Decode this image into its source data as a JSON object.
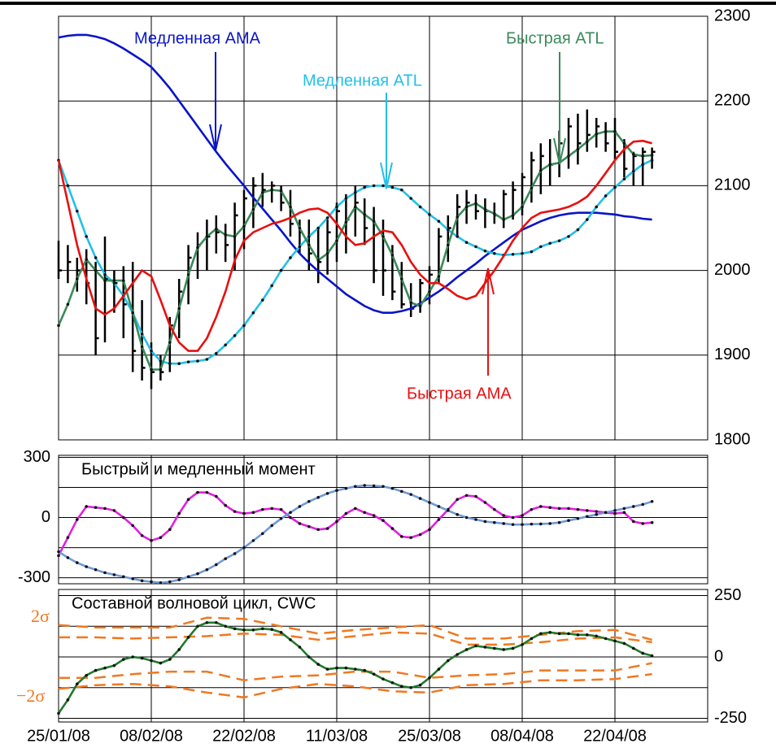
{
  "chart_data": [
    {
      "type": "ohlc",
      "ylim": [
        1800,
        2300
      ],
      "yticks": [
        1800,
        1900,
        2000,
        2100,
        2200,
        2300
      ],
      "grid": true,
      "bars": {
        "high": [
          2035,
          2030,
          2015,
          2025,
          2010,
          2040,
          2000,
          2005,
          2010,
          1965,
          1915,
          1900,
          1945,
          1990,
          2030,
          2045,
          2060,
          2065,
          2055,
          2080,
          2095,
          2110,
          2115,
          2105,
          2100,
          2095,
          2060,
          2060,
          2050,
          2060,
          2080,
          2090,
          2100,
          2085,
          2075,
          2060,
          2030,
          2010,
          1985,
          1990,
          2005,
          2050,
          2065,
          2090,
          2095,
          2090,
          2085,
          2080,
          2095,
          2105,
          2115,
          2140,
          2150,
          2155,
          2165,
          2180,
          2185,
          2190,
          2180,
          2175,
          2180,
          2155,
          2140,
          2145,
          2145
        ],
        "low": [
          1990,
          1985,
          1975,
          1960,
          1900,
          1915,
          1950,
          1920,
          1880,
          1870,
          1860,
          1870,
          1880,
          1920,
          1960,
          1990,
          2000,
          2020,
          2010,
          2000,
          2025,
          2050,
          2075,
          2080,
          2070,
          2040,
          2020,
          2000,
          1985,
          1995,
          2010,
          2020,
          2040,
          2030,
          1985,
          1970,
          1965,
          1955,
          1945,
          1950,
          1960,
          1985,
          2010,
          2040,
          2055,
          2060,
          2050,
          2055,
          2050,
          2060,
          2065,
          2080,
          2090,
          2100,
          2110,
          2120,
          2125,
          2140,
          2145,
          2140,
          2130,
          2110,
          2100,
          2100,
          2120
        ],
        "close": [
          2000,
          2010,
          2000,
          1985,
          1920,
          1990,
          1985,
          1960,
          1905,
          1885,
          1880,
          1880,
          1935,
          1975,
          2015,
          2030,
          2040,
          2045,
          2030,
          2065,
          2085,
          2100,
          2095,
          2100,
          2080,
          2055,
          2045,
          2020,
          2010,
          2045,
          2070,
          2060,
          2080,
          2050,
          2000,
          2000,
          1975,
          1960,
          1955,
          1985,
          1995,
          2040,
          2050,
          2075,
          2080,
          2070,
          2070,
          2065,
          2090,
          2095,
          2110,
          2130,
          2135,
          2125,
          2150,
          2170,
          2150,
          2160,
          2170,
          2150,
          2140,
          2120,
          2135,
          2140,
          2140
        ],
        "color": "#000000"
      },
      "series": [
        {
          "name": "Медленная AMA",
          "color": "#0a14c8",
          "markers": false,
          "values": [
            2275,
            2277,
            2278,
            2278,
            2276,
            2273,
            2268,
            2262,
            2255,
            2248,
            2240,
            2228,
            2215,
            2200,
            2185,
            2170,
            2155,
            2140,
            2126,
            2113,
            2100,
            2086,
            2073,
            2060,
            2047,
            2033,
            2020,
            2009,
            1999,
            1990,
            1981,
            1972,
            1965,
            1958,
            1953,
            1950,
            1950,
            1952,
            1955,
            1961,
            1968,
            1975,
            1983,
            1992,
            2000,
            2008,
            2017,
            2025,
            2033,
            2041,
            2048,
            2053,
            2058,
            2062,
            2065,
            2067,
            2068,
            2068,
            2068,
            2067,
            2066,
            2064,
            2063,
            2061,
            2060
          ]
        },
        {
          "name": "Медленная ATL",
          "color": "#22c0e8",
          "markers": true,
          "values": [
            2130,
            2100,
            2070,
            2040,
            2015,
            1995,
            1985,
            1970,
            1950,
            1925,
            1905,
            1893,
            1890,
            1890,
            1892,
            1893,
            1895,
            1902,
            1912,
            1923,
            1935,
            1950,
            1965,
            1982,
            2000,
            2015,
            2028,
            2040,
            2050,
            2062,
            2075,
            2085,
            2092,
            2098,
            2100,
            2100,
            2098,
            2095,
            2085,
            2075,
            2066,
            2058,
            2048,
            2040,
            2033,
            2028,
            2023,
            2020,
            2018,
            2019,
            2020,
            2022,
            2028,
            2032,
            2035,
            2040,
            2048,
            2060,
            2075,
            2088,
            2098,
            2108,
            2117,
            2125,
            2130
          ]
        },
        {
          "name": "Быстрая ATL",
          "color": "#3a8a5a",
          "markers": true,
          "values": [
            1935,
            1960,
            1990,
            2013,
            2000,
            1988,
            1988,
            1988,
            1950,
            1910,
            1883,
            1883,
            1915,
            1955,
            1995,
            2027,
            2040,
            2049,
            2042,
            2040,
            2052,
            2072,
            2092,
            2095,
            2094,
            2075,
            2050,
            2030,
            2012,
            2020,
            2035,
            2057,
            2075,
            2066,
            2058,
            2040,
            2018,
            1990,
            1962,
            1958,
            1975,
            1993,
            2030,
            2063,
            2075,
            2079,
            2072,
            2067,
            2060,
            2065,
            2075,
            2097,
            2118,
            2125,
            2127,
            2135,
            2143,
            2152,
            2161,
            2164,
            2164,
            2150,
            2137,
            2135,
            2136
          ]
        },
        {
          "name": "Быстрая АМА",
          "color": "#e81010",
          "markers": false,
          "values": [
            2130,
            2080,
            2030,
            1990,
            1955,
            1948,
            1955,
            1970,
            1985,
            2000,
            1993,
            1965,
            1935,
            1915,
            1905,
            1905,
            1920,
            1945,
            1975,
            2012,
            2035,
            2045,
            2050,
            2055,
            2058,
            2062,
            2068,
            2072,
            2073,
            2068,
            2055,
            2040,
            2030,
            2032,
            2040,
            2047,
            2045,
            2030,
            2010,
            1995,
            1985,
            1985,
            1978,
            1970,
            1966,
            1970,
            1985,
            2000,
            2017,
            2035,
            2050,
            2062,
            2068,
            2070,
            2072,
            2075,
            2080,
            2087,
            2100,
            2115,
            2130,
            2143,
            2152,
            2153,
            2150
          ]
        }
      ]
    },
    {
      "type": "line",
      "title": "Быстрый и медленный момент",
      "ylim": [
        -330,
        310
      ],
      "yticks": [
        -300,
        0,
        300
      ],
      "grid": true,
      "series": [
        {
          "color": "#e020e0",
          "markers": true,
          "values": [
            -190,
            -100,
            -10,
            55,
            50,
            45,
            35,
            0,
            -40,
            -90,
            -115,
            -100,
            -60,
            20,
            90,
            125,
            125,
            105,
            60,
            30,
            20,
            25,
            40,
            45,
            40,
            0,
            -30,
            -45,
            -60,
            -55,
            -20,
            20,
            45,
            25,
            10,
            -15,
            -55,
            -95,
            -100,
            -85,
            -60,
            -10,
            40,
            90,
            110,
            105,
            75,
            40,
            10,
            0,
            10,
            40,
            55,
            50,
            45,
            45,
            40,
            35,
            30,
            25,
            20,
            25,
            -20,
            -30,
            -25
          ]
        },
        {
          "color": "#6f9ad8",
          "markers": true,
          "values": [
            -170,
            -200,
            -225,
            -245,
            -260,
            -275,
            -285,
            -295,
            -305,
            -315,
            -320,
            -325,
            -320,
            -310,
            -295,
            -280,
            -260,
            -235,
            -205,
            -180,
            -150,
            -115,
            -80,
            -40,
            -5,
            25,
            55,
            80,
            100,
            120,
            135,
            145,
            155,
            160,
            158,
            155,
            145,
            130,
            115,
            95,
            75,
            55,
            35,
            15,
            0,
            -10,
            -20,
            -25,
            -30,
            -35,
            -35,
            -33,
            -32,
            -30,
            -25,
            -15,
            -5,
            5,
            15,
            25,
            35,
            45,
            55,
            65,
            80
          ]
        }
      ]
    },
    {
      "type": "line",
      "title": "Составной волновой цикл, CWC",
      "ylim": [
        -265,
        275
      ],
      "yticks": [
        -250,
        0,
        250
      ],
      "grid": true,
      "x": [
        0,
        1,
        2,
        3,
        4,
        5,
        6,
        7,
        8,
        9,
        10,
        11,
        12,
        13,
        14,
        15,
        16,
        17,
        18,
        19,
        20,
        21,
        22,
        23,
        24,
        25,
        26,
        27,
        28,
        29,
        30,
        31,
        32,
        33,
        34,
        35,
        36,
        37,
        38,
        39,
        40,
        41,
        42,
        43,
        44,
        45,
        46,
        47,
        48,
        49,
        50,
        51,
        52,
        53,
        54,
        55,
        56,
        57,
        58,
        59,
        60,
        61,
        62,
        63,
        64
      ],
      "xlim": [
        0,
        70
      ],
      "xticks": [
        {
          "value": 0,
          "label": "25/01/08"
        },
        {
          "value": 10,
          "label": "08/02/08"
        },
        {
          "value": 20,
          "label": "22/02/08"
        },
        {
          "value": 30,
          "label": "11/03/08"
        },
        {
          "value": 40,
          "label": "25/03/08"
        },
        {
          "value": 50,
          "label": "08/04/08"
        },
        {
          "value": 60,
          "label": "22/04/08"
        }
      ],
      "annotations": [
        "2σ",
        "−2σ"
      ],
      "annotation_color": "#f07820",
      "series": [
        {
          "color": "#f07820",
          "dash": true,
          "x": [
            0,
            4,
            8,
            12,
            16,
            20,
            24,
            28,
            32,
            36,
            40,
            44,
            48,
            52,
            56,
            60,
            64
          ],
          "values": [
            130,
            120,
            120,
            120,
            160,
            155,
            125,
            95,
            110,
            120,
            130,
            75,
            75,
            90,
            105,
            110,
            70
          ]
        },
        {
          "color": "#f07820",
          "dash": true,
          "x": [
            0,
            4,
            8,
            12,
            16,
            20,
            24,
            28,
            32,
            36,
            40,
            44,
            48,
            52,
            56,
            60,
            64
          ],
          "values": [
            80,
            80,
            75,
            80,
            85,
            95,
            90,
            70,
            85,
            100,
            95,
            50,
            50,
            60,
            75,
            80,
            60
          ]
        },
        {
          "color": "#f07820",
          "dash": true,
          "x": [
            0,
            4,
            8,
            12,
            16,
            20,
            24,
            28,
            32,
            36,
            40,
            44,
            48,
            52,
            56,
            60,
            64
          ],
          "values": [
            -85,
            -85,
            -70,
            -60,
            -60,
            -95,
            -80,
            -75,
            -60,
            -60,
            -85,
            -75,
            -70,
            -55,
            -55,
            -55,
            -25
          ]
        },
        {
          "color": "#f07820",
          "dash": true,
          "x": [
            0,
            4,
            8,
            12,
            16,
            20,
            24,
            28,
            32,
            36,
            40,
            44,
            48,
            52,
            56,
            60,
            64
          ],
          "values": [
            -130,
            -115,
            -110,
            -120,
            -145,
            -165,
            -130,
            -110,
            -120,
            -140,
            -145,
            -115,
            -110,
            -95,
            -95,
            -90,
            -70
          ]
        },
        {
          "color": "#1f7a2a",
          "markers": true,
          "values": [
            -230,
            -175,
            -110,
            -75,
            -55,
            -45,
            -35,
            -10,
            0,
            -5,
            -15,
            -25,
            -10,
            30,
            80,
            125,
            140,
            140,
            125,
            115,
            110,
            110,
            115,
            112,
            100,
            70,
            40,
            0,
            -30,
            -50,
            -45,
            -45,
            -50,
            -55,
            -70,
            -90,
            -105,
            -120,
            -125,
            -115,
            -85,
            -50,
            -15,
            10,
            30,
            45,
            40,
            35,
            30,
            35,
            50,
            75,
            95,
            100,
            95,
            95,
            90,
            90,
            85,
            75,
            65,
            55,
            35,
            15,
            5
          ]
        }
      ]
    }
  ]
}
